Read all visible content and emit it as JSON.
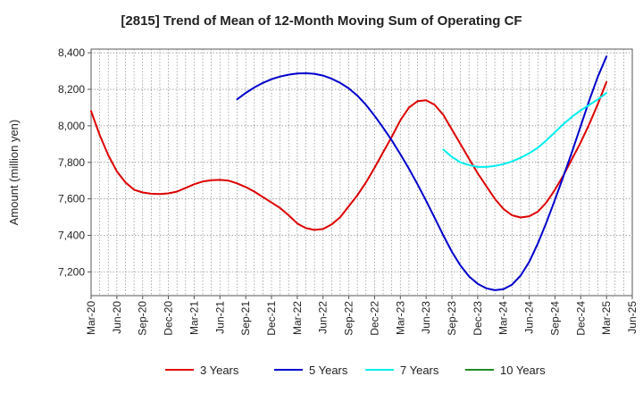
{
  "chart_data": {
    "type": "line",
    "title": "[2815]  Trend of Mean of 12-Month Moving Sum of Operating CF",
    "xlabel": "",
    "ylabel": "Amount (million yen)",
    "ylim": [
      7070,
      8420
    ],
    "yticks": [
      7200,
      7400,
      7600,
      7800,
      8000,
      8200,
      8400
    ],
    "ytick_labels": [
      "7,200",
      "7,400",
      "7,600",
      "7,800",
      "8,000",
      "8,200",
      "8,400"
    ],
    "xlim": [
      0,
      63
    ],
    "x_tick_positions": [
      0,
      3,
      6,
      9,
      12,
      15,
      18,
      21,
      24,
      27,
      30,
      33,
      36,
      39,
      42,
      45,
      48,
      51,
      54,
      57,
      60,
      63
    ],
    "x_tick_labels": [
      "Mar-20",
      "Jun-20",
      "Sep-20",
      "Dec-20",
      "Mar-21",
      "Jun-21",
      "Sep-21",
      "Dec-21",
      "Mar-22",
      "Jun-22",
      "Sep-22",
      "Dec-22",
      "Mar-23",
      "Jun-23",
      "Sep-23",
      "Dec-23",
      "Mar-24",
      "Jun-24",
      "Sep-24",
      "Dec-24",
      "Mar-25",
      "Jun-25"
    ],
    "grid": true,
    "legend_position": "bottom",
    "series": [
      {
        "name": "3 Years",
        "color": "#dd0000",
        "x": [
          0,
          1,
          2,
          3,
          4,
          5,
          6,
          7,
          8,
          9,
          10,
          11,
          12,
          13,
          14,
          15,
          16,
          17,
          18,
          19,
          20,
          21,
          22,
          23,
          24,
          25,
          26,
          27,
          28,
          29,
          30,
          31,
          32,
          33,
          34,
          35,
          36,
          37,
          38,
          39,
          40,
          41,
          42,
          43,
          44,
          45,
          46,
          47,
          48,
          49,
          50,
          51,
          52,
          53,
          54,
          55,
          56,
          57,
          58,
          59,
          60
        ],
        "values": [
          8080,
          7950,
          7840,
          7750,
          7690,
          7650,
          7635,
          7628,
          7626,
          7630,
          7640,
          7660,
          7680,
          7695,
          7702,
          7704,
          7700,
          7685,
          7665,
          7640,
          7610,
          7580,
          7550,
          7510,
          7465,
          7440,
          7430,
          7435,
          7460,
          7500,
          7560,
          7620,
          7690,
          7770,
          7855,
          7940,
          8030,
          8100,
          8135,
          8140,
          8115,
          8060,
          7980,
          7900,
          7820,
          7740,
          7670,
          7600,
          7545,
          7510,
          7498,
          7505,
          7530,
          7580,
          7650,
          7730,
          7820,
          7910,
          8010,
          8120,
          8240
        ]
      },
      {
        "name": "5 Years",
        "color": "#0000cc",
        "x": [
          17,
          18,
          19,
          20,
          21,
          22,
          23,
          24,
          25,
          26,
          27,
          28,
          29,
          30,
          31,
          32,
          33,
          34,
          35,
          36,
          37,
          38,
          39,
          40,
          41,
          42,
          43,
          44,
          45,
          46,
          47,
          48,
          49,
          50,
          51,
          52,
          53,
          54,
          55,
          56,
          57,
          58,
          59,
          60
        ],
        "values": [
          8145,
          8180,
          8210,
          8235,
          8255,
          8270,
          8280,
          8287,
          8288,
          8285,
          8275,
          8258,
          8235,
          8205,
          8165,
          8115,
          8055,
          7990,
          7920,
          7845,
          7765,
          7680,
          7590,
          7495,
          7400,
          7310,
          7235,
          7175,
          7135,
          7110,
          7100,
          7105,
          7130,
          7180,
          7255,
          7355,
          7470,
          7595,
          7725,
          7860,
          8000,
          8140,
          8270,
          8380
        ]
      },
      {
        "name": "7 Years",
        "color": "#00eeee",
        "x": [
          41,
          42,
          43,
          44,
          45,
          46,
          47,
          48,
          49,
          50,
          51,
          52,
          53,
          54,
          55,
          56,
          57,
          58,
          59,
          60
        ],
        "values": [
          7870,
          7830,
          7800,
          7785,
          7775,
          7775,
          7780,
          7790,
          7805,
          7825,
          7850,
          7880,
          7920,
          7965,
          8010,
          8050,
          8085,
          8115,
          8145,
          8180
        ]
      },
      {
        "name": "10 Years",
        "color": "#228b22",
        "x": [],
        "values": []
      }
    ]
  }
}
